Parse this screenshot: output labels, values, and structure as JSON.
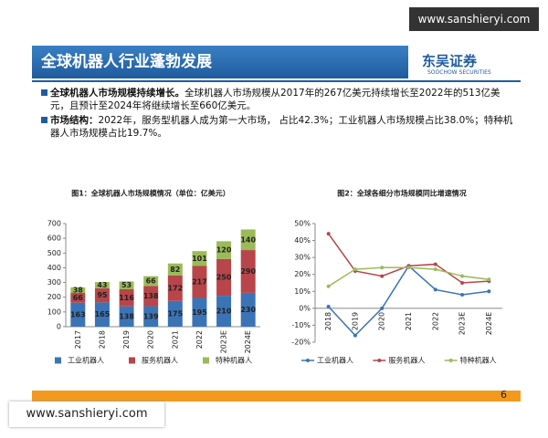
{
  "watermark": {
    "top": "www.sanshieryi.com",
    "bottom": "www.sanshieryi.com"
  },
  "header": {
    "title": "全球机器人行业蓬勃发展",
    "logo": "东吴证券",
    "logo_sub": "SOOCHOW SECURITIES"
  },
  "bullets": [
    {
      "heading": "全球机器人市场规模持续增长。",
      "text": "全球机器人市场规模从2017年的267亿美元持续增长至2022年的513亿美元，且预计至2024年将继续增长至660亿美元。"
    },
    {
      "heading": "市场结构：",
      "text": "2022年，服务型机器人成为第一大市场， 占比42.3%；工业机器人市场规模占比38.0%；特种机器人市场规模占比19.7%。"
    }
  ],
  "page_number": "6",
  "chart_data": [
    {
      "type": "bar",
      "title": "图1：全球机器人市场规模情况（单位：亿美元）",
      "categories": [
        "2017",
        "2018",
        "2019",
        "2020",
        "2021",
        "2022",
        "2023E",
        "2024E"
      ],
      "series": [
        {
          "name": "工业机器人",
          "color": "#3b74b6",
          "values": [
            163,
            165,
            138,
            139,
            175,
            195,
            210,
            230
          ]
        },
        {
          "name": "服务机器人",
          "color": "#b8454a",
          "values": [
            66,
            95,
            116,
            138,
            172,
            217,
            250,
            290
          ]
        },
        {
          "name": "特种机器人",
          "color": "#9bbb59",
          "values": [
            38,
            43,
            53,
            66,
            82,
            101,
            120,
            140
          ]
        }
      ],
      "ylim": [
        0,
        700
      ],
      "yticks": [
        0,
        100,
        200,
        300,
        400,
        500,
        600,
        700
      ]
    },
    {
      "type": "line",
      "title": "图2：全球各细分市场规模同比增速情况",
      "categories": [
        "2018",
        "2019",
        "2020",
        "2021",
        "2022",
        "2023E",
        "2024E"
      ],
      "series": [
        {
          "name": "工业机器人",
          "color": "#3b74b6",
          "values": [
            1,
            -16,
            0,
            25,
            11,
            8,
            10
          ]
        },
        {
          "name": "服务机器人",
          "color": "#b8454a",
          "values": [
            44,
            22,
            19,
            25,
            26,
            15,
            16
          ]
        },
        {
          "name": "特种机器人",
          "color": "#9bbb59",
          "values": [
            13,
            23,
            24,
            24,
            23,
            19,
            17
          ]
        }
      ],
      "ylim": [
        -20,
        50
      ],
      "yticks": [
        {
          "value": -20,
          "label": "-20%"
        },
        {
          "value": -10,
          "label": "-10%"
        },
        {
          "value": 0,
          "label": "0%"
        },
        {
          "value": 10,
          "label": "10%"
        },
        {
          "value": 20,
          "label": "20%"
        },
        {
          "value": 30,
          "label": "30%"
        },
        {
          "value": 40,
          "label": "40%"
        },
        {
          "value": 50,
          "label": "50%"
        }
      ]
    }
  ]
}
